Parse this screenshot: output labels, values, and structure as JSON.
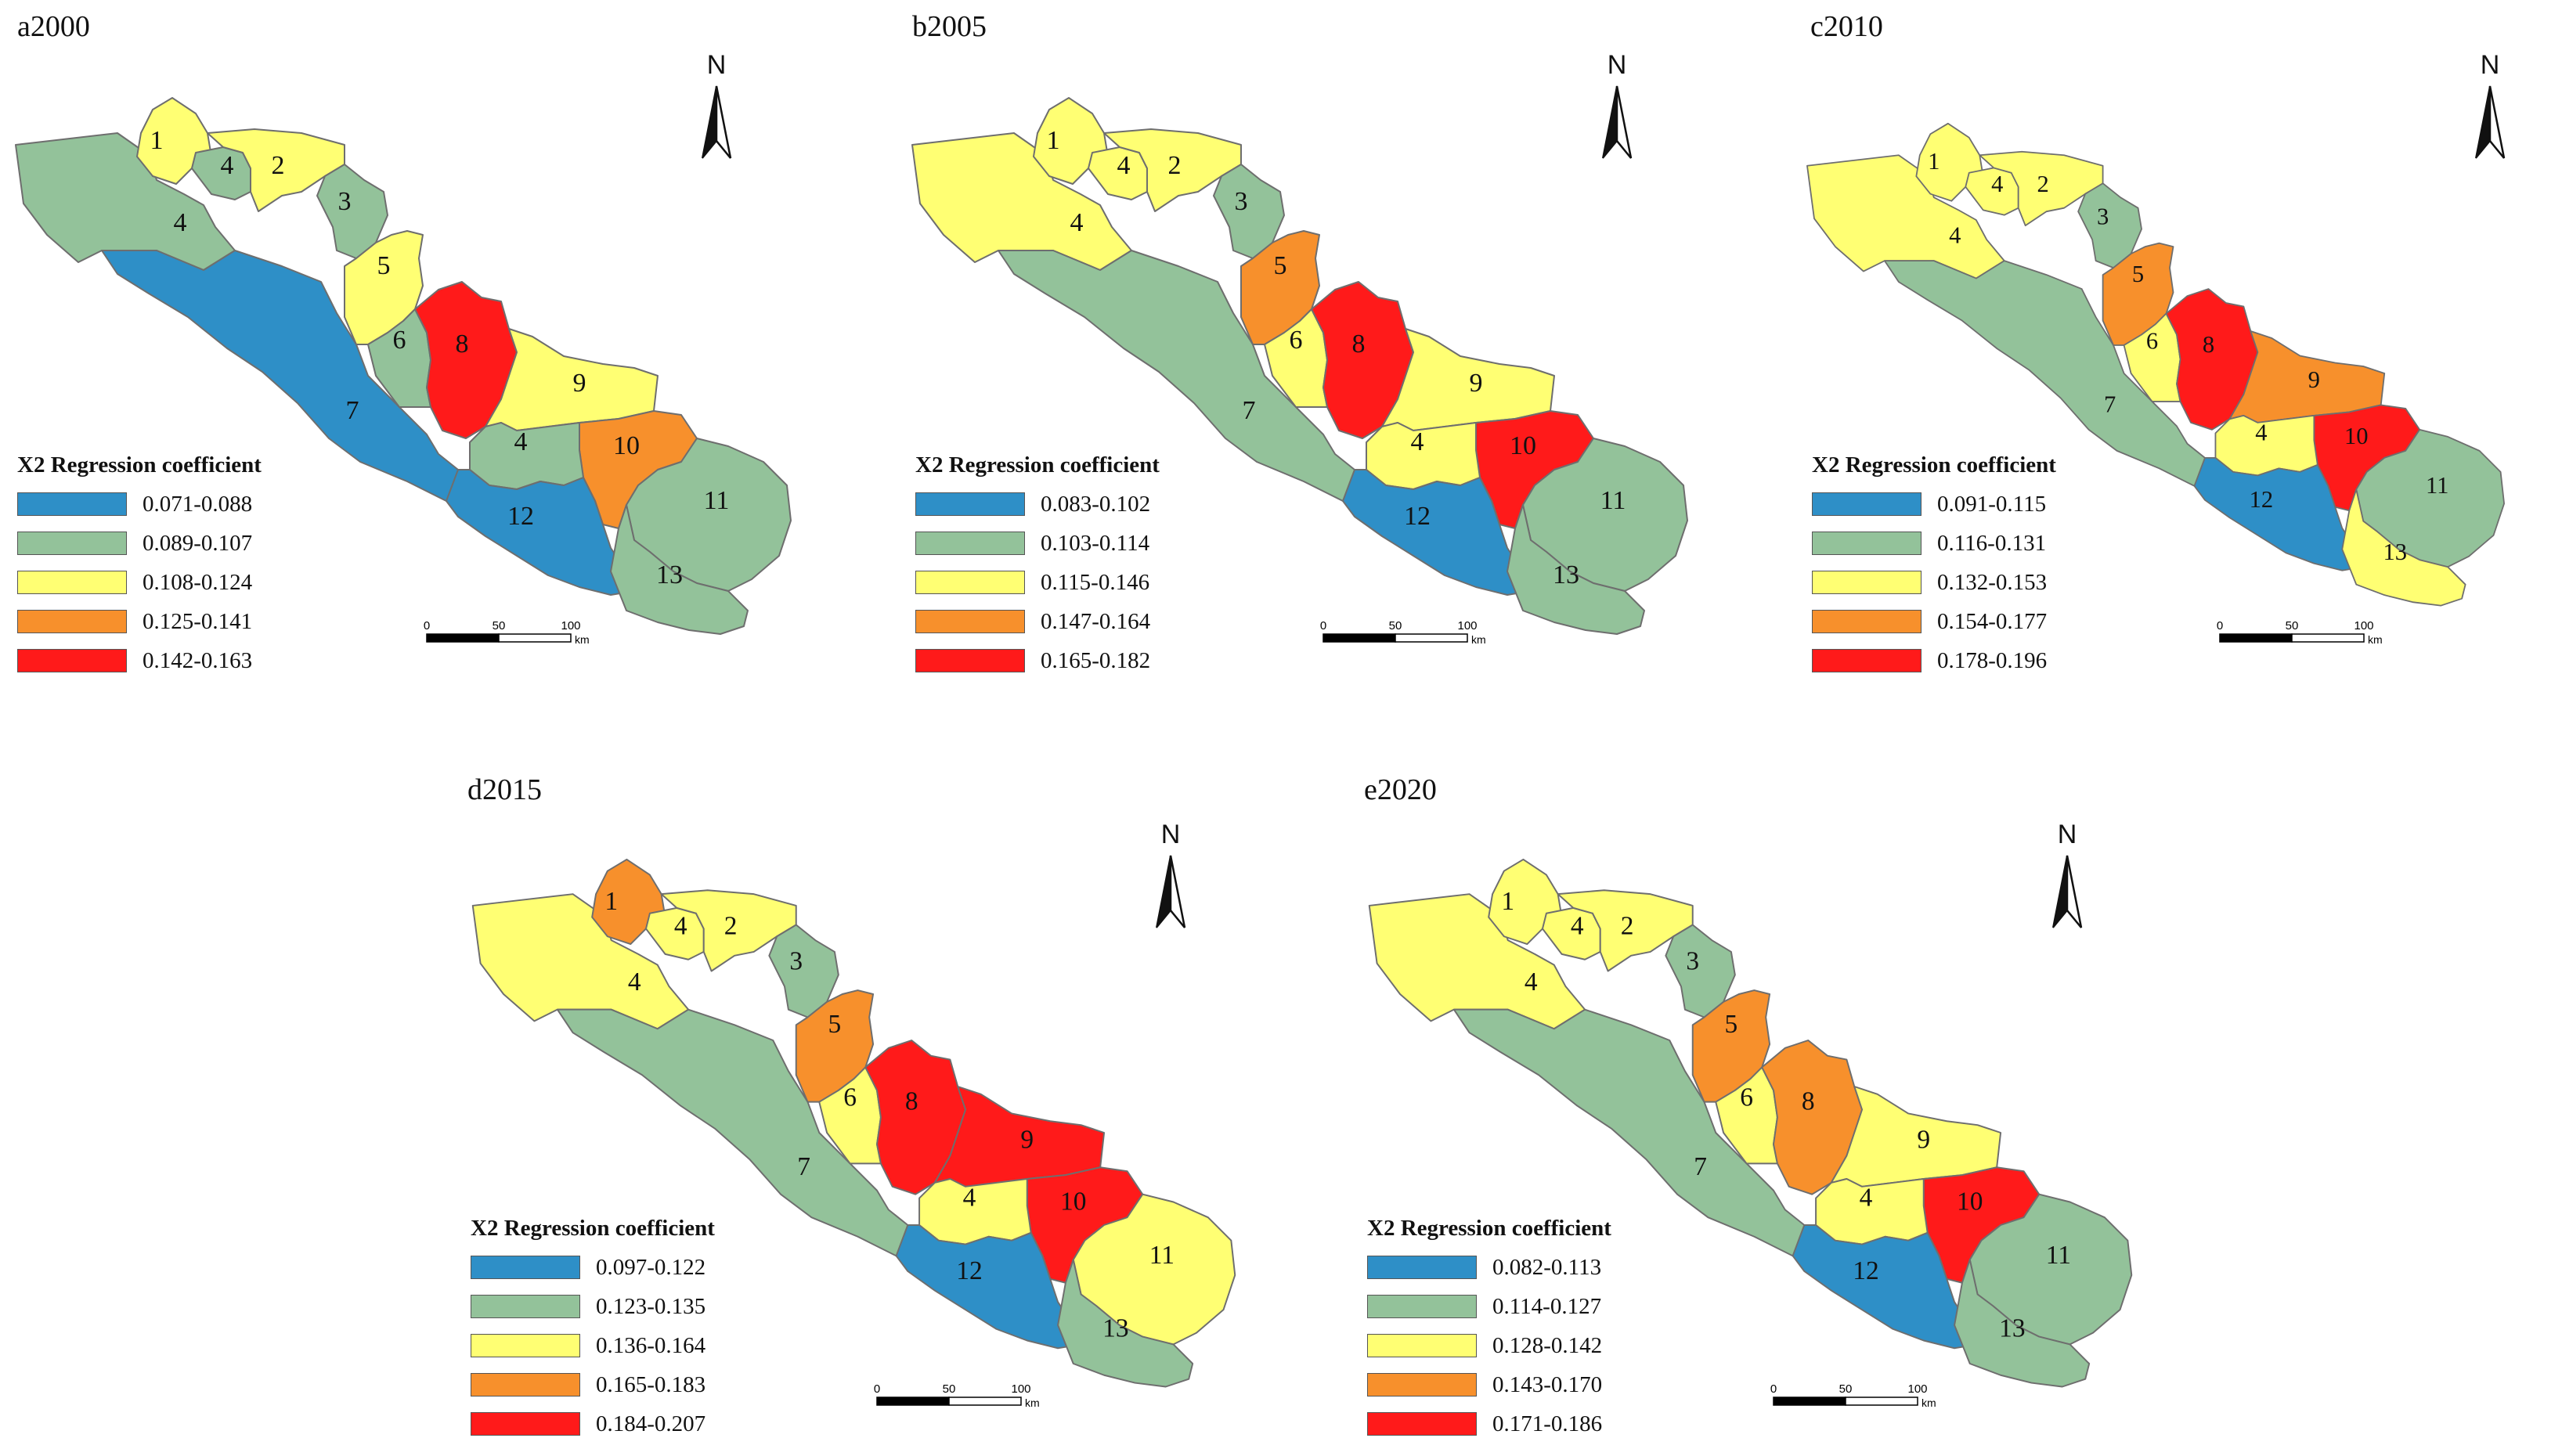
{
  "panels": [
    {
      "title": "a2000",
      "legend_title": "X2 Regression coefficient",
      "legend": [
        {
          "range": "0.071-0.088",
          "color": "#2e8fc7"
        },
        {
          "range": "0.089-0.107",
          "color": "#93c29a"
        },
        {
          "range": "0.108-0.124",
          "color": "#ffff73"
        },
        {
          "range": "0.125-0.141",
          "color": "#f7902c"
        },
        {
          "range": "0.142-0.163",
          "color": "#ff1a1a"
        }
      ],
      "region_class": {
        "1": 2,
        "2": 2,
        "3": 1,
        "4a": 1,
        "4b": 1,
        "4c": 1,
        "5": 2,
        "6": 1,
        "7": 0,
        "8": 4,
        "9": 2,
        "10": 3,
        "11": 1,
        "12": 0,
        "13": 1
      }
    },
    {
      "title": "b2005",
      "legend_title": "X2 Regression coefficient",
      "legend": [
        {
          "range": "0.083-0.102",
          "color": "#2e8fc7"
        },
        {
          "range": "0.103-0.114",
          "color": "#93c29a"
        },
        {
          "range": "0.115-0.146",
          "color": "#ffff73"
        },
        {
          "range": "0.147-0.164",
          "color": "#f7902c"
        },
        {
          "range": "0.165-0.182",
          "color": "#ff1a1a"
        }
      ],
      "region_class": {
        "1": 2,
        "2": 2,
        "3": 1,
        "4a": 2,
        "4b": 2,
        "4c": 2,
        "5": 3,
        "6": 2,
        "7": 1,
        "8": 4,
        "9": 2,
        "10": 4,
        "11": 1,
        "12": 0,
        "13": 1
      }
    },
    {
      "title": "c2010",
      "legend_title": "X2 Regression coefficient",
      "legend": [
        {
          "range": "0.091-0.115",
          "color": "#2e8fc7"
        },
        {
          "range": "0.116-0.131",
          "color": "#93c29a"
        },
        {
          "range": "0.132-0.153",
          "color": "#ffff73"
        },
        {
          "range": "0.154-0.177",
          "color": "#f7902c"
        },
        {
          "range": "0.178-0.196",
          "color": "#ff1a1a"
        }
      ],
      "region_class": {
        "1": 2,
        "2": 2,
        "3": 1,
        "4a": 2,
        "4b": 2,
        "4c": 2,
        "5": 3,
        "6": 2,
        "7": 1,
        "8": 4,
        "9": 3,
        "10": 4,
        "11": 1,
        "12": 0,
        "13": 2
      }
    },
    {
      "title": "d2015",
      "legend_title": "X2 Regression coefficient",
      "legend": [
        {
          "range": "0.097-0.122",
          "color": "#2e8fc7"
        },
        {
          "range": "0.123-0.135",
          "color": "#93c29a"
        },
        {
          "range": "0.136-0.164",
          "color": "#ffff73"
        },
        {
          "range": "0.165-0.183",
          "color": "#f7902c"
        },
        {
          "range": "0.184-0.207",
          "color": "#ff1a1a"
        }
      ],
      "region_class": {
        "1": 3,
        "2": 2,
        "3": 1,
        "4a": 2,
        "4b": 2,
        "4c": 2,
        "5": 3,
        "6": 2,
        "7": 1,
        "8": 4,
        "9": 4,
        "10": 4,
        "11": 2,
        "12": 0,
        "13": 1
      }
    },
    {
      "title": "e2020",
      "legend_title": "X2 Regression coefficient",
      "legend": [
        {
          "range": "0.082-0.113",
          "color": "#2e8fc7"
        },
        {
          "range": "0.114-0.127",
          "color": "#93c29a"
        },
        {
          "range": "0.128-0.142",
          "color": "#ffff73"
        },
        {
          "range": "0.143-0.170",
          "color": "#f7902c"
        },
        {
          "range": "0.171-0.186",
          "color": "#ff1a1a"
        }
      ],
      "region_class": {
        "1": 2,
        "2": 2,
        "3": 1,
        "4a": 2,
        "4b": 2,
        "4c": 2,
        "5": 3,
        "6": 2,
        "7": 1,
        "8": 3,
        "9": 2,
        "10": 4,
        "11": 1,
        "12": 0,
        "13": 1
      }
    }
  ],
  "north_label": "N",
  "scale": {
    "ticks": [
      "0",
      "50",
      "100"
    ],
    "unit": "km"
  },
  "region_names": {
    "1": "1",
    "2": "2",
    "3": "3",
    "4a": "4",
    "4b": "4",
    "4c": "4",
    "5": "5",
    "6": "6",
    "7": "7",
    "8": "8",
    "9": "9",
    "10": "10",
    "11": "11",
    "12": "12",
    "13": "13"
  }
}
